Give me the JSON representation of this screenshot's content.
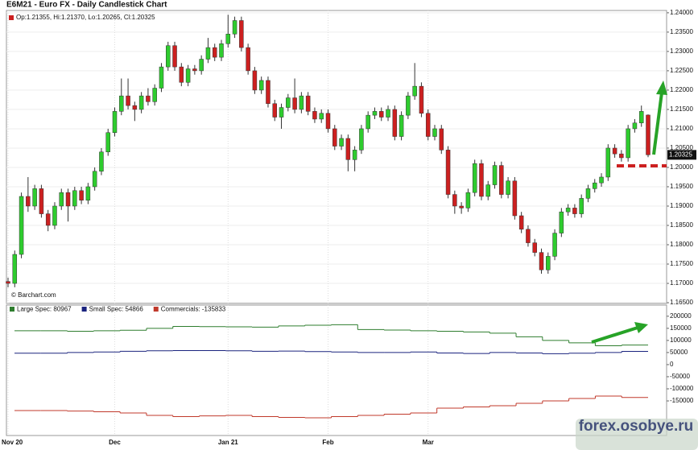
{
  "chart_data": [
    {
      "type": "candlestick",
      "title": "E6M21 - Euro FX - Daily Candlestick Chart",
      "subtitle": "Op:1.21355, Hi:1.21370, Lo:1.20265, Cl:1.20325",
      "source": "© Barchart.com",
      "categories": [
        "Nov 20",
        null,
        null,
        null,
        null,
        null,
        null,
        null,
        null,
        null,
        null,
        null,
        null,
        null,
        null,
        null,
        "Dec",
        null,
        null,
        null,
        null,
        null,
        null,
        null,
        null,
        null,
        null,
        null,
        null,
        null,
        null,
        null,
        null,
        "Jan 21",
        null,
        null,
        null,
        null,
        null,
        null,
        null,
        null,
        null,
        null,
        null,
        null,
        null,
        null,
        "Feb",
        null,
        null,
        null,
        null,
        null,
        null,
        null,
        null,
        null,
        null,
        null,
        null,
        null,
        null,
        "Mar",
        null,
        null,
        null,
        null,
        null,
        null,
        null,
        null,
        null,
        null,
        null,
        null,
        null,
        null,
        null,
        null,
        null,
        null,
        null,
        null,
        null,
        null,
        null,
        null,
        null,
        null,
        null,
        null,
        null,
        null,
        null,
        null,
        null
      ],
      "open": [
        1.1705,
        1.17,
        1.1775,
        1.1925,
        1.19,
        1.1945,
        1.188,
        1.185,
        1.19,
        1.1935,
        1.19,
        1.194,
        1.1915,
        1.195,
        1.199,
        1.204,
        1.209,
        1.2145,
        1.2185,
        1.216,
        1.215,
        1.2185,
        1.217,
        1.2205,
        1.226,
        1.2315,
        1.226,
        1.222,
        1.2255,
        1.225,
        1.228,
        1.231,
        1.2285,
        1.232,
        1.2345,
        1.238,
        1.231,
        1.225,
        1.22,
        1.2225,
        1.2165,
        1.213,
        1.2155,
        1.218,
        1.215,
        1.2185,
        1.2145,
        1.2125,
        1.214,
        1.21,
        1.2055,
        1.2075,
        1.202,
        1.2045,
        1.21,
        1.2135,
        1.2145,
        1.213,
        1.215,
        1.208,
        1.2135,
        1.2185,
        1.221,
        1.214,
        1.208,
        1.21,
        1.2045,
        1.193,
        1.19,
        1.1895,
        1.1935,
        1.201,
        1.1925,
        1.1955,
        1.2005,
        1.193,
        1.1965,
        1.1875,
        1.184,
        1.1805,
        1.178,
        1.1735,
        1.177,
        1.183,
        1.1885,
        1.1895,
        1.188,
        1.192,
        1.1945,
        1.196,
        1.1975,
        1.205,
        1.2035,
        1.2025,
        1.21,
        1.2115,
        1.21355
      ],
      "high": [
        1.1715,
        1.1785,
        1.1935,
        1.1975,
        1.1955,
        1.1955,
        1.189,
        1.191,
        1.1945,
        1.1945,
        1.195,
        1.195,
        1.196,
        1.2,
        1.205,
        1.21,
        1.2155,
        1.223,
        1.223,
        1.217,
        1.2195,
        1.2205,
        1.2215,
        1.227,
        1.2325,
        1.2325,
        1.227,
        1.2265,
        1.2265,
        1.229,
        1.2335,
        1.232,
        1.233,
        1.2395,
        1.239,
        1.239,
        1.232,
        1.226,
        1.2235,
        1.2235,
        1.2175,
        1.2165,
        1.219,
        1.223,
        1.2195,
        1.2195,
        1.2155,
        1.215,
        1.215,
        1.211,
        1.2085,
        1.2085,
        1.2055,
        1.211,
        1.2145,
        1.2155,
        1.2155,
        1.216,
        1.216,
        1.2145,
        1.2195,
        1.227,
        1.222,
        1.215,
        1.211,
        1.211,
        1.2055,
        1.194,
        1.191,
        1.1945,
        1.202,
        1.202,
        1.1965,
        1.2015,
        1.2015,
        1.1975,
        1.1975,
        1.1885,
        1.185,
        1.1815,
        1.179,
        1.178,
        1.184,
        1.1895,
        1.1905,
        1.1905,
        1.193,
        1.1955,
        1.197,
        1.1985,
        1.206,
        1.206,
        1.2045,
        1.211,
        1.2125,
        1.216,
        1.2137
      ],
      "low": [
        1.169,
        1.169,
        1.1765,
        1.1885,
        1.189,
        1.187,
        1.1835,
        1.184,
        1.189,
        1.186,
        1.189,
        1.1905,
        1.1905,
        1.194,
        1.198,
        1.203,
        1.208,
        1.2135,
        1.215,
        1.212,
        1.214,
        1.216,
        1.216,
        1.2195,
        1.225,
        1.225,
        1.221,
        1.221,
        1.224,
        1.224,
        1.227,
        1.2275,
        1.2275,
        1.231,
        1.2335,
        1.23,
        1.224,
        1.219,
        1.219,
        1.2155,
        1.212,
        1.21,
        1.2145,
        1.214,
        1.214,
        1.2135,
        1.2115,
        1.2115,
        1.209,
        1.2045,
        1.2045,
        1.199,
        1.199,
        1.2035,
        1.209,
        1.2125,
        1.212,
        1.212,
        1.207,
        1.207,
        1.2125,
        1.2175,
        1.213,
        1.207,
        1.207,
        1.2035,
        1.192,
        1.188,
        1.188,
        1.1885,
        1.1925,
        1.1915,
        1.1915,
        1.1945,
        1.192,
        1.192,
        1.1865,
        1.183,
        1.1795,
        1.177,
        1.1725,
        1.1725,
        1.176,
        1.182,
        1.1875,
        1.187,
        1.187,
        1.191,
        1.1935,
        1.195,
        1.1965,
        1.2025,
        1.2015,
        1.2015,
        1.209,
        1.2105,
        1.20265
      ],
      "close": [
        1.17,
        1.1775,
        1.1925,
        1.19,
        1.1945,
        1.188,
        1.185,
        1.19,
        1.1935,
        1.19,
        1.194,
        1.1915,
        1.195,
        1.199,
        1.204,
        1.209,
        1.2145,
        1.2185,
        1.216,
        1.215,
        1.2185,
        1.217,
        1.2205,
        1.226,
        1.2315,
        1.226,
        1.222,
        1.2255,
        1.225,
        1.228,
        1.231,
        1.2285,
        1.232,
        1.2345,
        1.238,
        1.231,
        1.225,
        1.22,
        1.2225,
        1.2165,
        1.213,
        1.2155,
        1.218,
        1.215,
        1.2185,
        1.2145,
        1.2125,
        1.214,
        1.21,
        1.2055,
        1.2075,
        1.202,
        1.2045,
        1.21,
        1.2135,
        1.2145,
        1.213,
        1.215,
        1.208,
        1.2135,
        1.2185,
        1.221,
        1.214,
        1.208,
        1.21,
        1.2045,
        1.193,
        1.19,
        1.1895,
        1.1935,
        1.201,
        1.1925,
        1.1955,
        1.2005,
        1.193,
        1.1965,
        1.1875,
        1.184,
        1.1805,
        1.178,
        1.1735,
        1.177,
        1.183,
        1.1885,
        1.1895,
        1.188,
        1.192,
        1.1945,
        1.196,
        1.1975,
        1.205,
        1.2035,
        1.2025,
        1.21,
        1.2115,
        1.2145,
        1.20325
      ],
      "up_color": "#2ecc2e",
      "down_color": "#cc2020",
      "ylim": [
        1.1648,
        1.2406
      ],
      "yticks": [
        {
          "value": 1.165,
          "label": "1.16500"
        },
        {
          "value": 1.17,
          "label": "1.17000"
        },
        {
          "value": 1.175,
          "label": "1.17500"
        },
        {
          "value": 1.18,
          "label": "1.18000"
        },
        {
          "value": 1.185,
          "label": "1.18500"
        },
        {
          "value": 1.19,
          "label": "1.19000"
        },
        {
          "value": 1.195,
          "label": "1.19500"
        },
        {
          "value": 1.2,
          "label": "1.20000"
        },
        {
          "value": 1.205,
          "label": "1.20500"
        },
        {
          "value": 1.21,
          "label": "1.21000"
        },
        {
          "value": 1.215,
          "label": "1.21500"
        },
        {
          "value": 1.22,
          "label": "1.22000"
        },
        {
          "value": 1.225,
          "label": "1.22500"
        },
        {
          "value": 1.23,
          "label": "1.23000"
        },
        {
          "value": 1.235,
          "label": "1.23500"
        },
        {
          "value": 1.24,
          "label": "1.24000"
        }
      ],
      "price_marker": {
        "value": 1.20325,
        "label": "1.20325"
      },
      "grid": true
    },
    {
      "type": "line",
      "series": [
        {
          "name": "Large Spec: 80967",
          "color": "#2e7d2e",
          "values": [
            140000,
            140000,
            138000,
            140000,
            142000,
            150000,
            158000,
            157000,
            156000,
            155000,
            160000,
            163000,
            165000,
            145000,
            143000,
            140000,
            138000,
            135000,
            130000,
            115000,
            100000,
            90000,
            78000,
            80967
          ]
        },
        {
          "name": "Small Spec: 54866",
          "color": "#1a237e",
          "values": [
            47000,
            47000,
            50000,
            52000,
            55000,
            57000,
            58000,
            58000,
            57000,
            55000,
            56000,
            54000,
            52000,
            50000,
            50000,
            52000,
            48000,
            46000,
            50000,
            48000,
            45000,
            47000,
            50000,
            54866
          ]
        },
        {
          "name": "Commercials: -135833",
          "color": "#c0392b",
          "values": [
            -190000,
            -190000,
            -192000,
            -195000,
            -200000,
            -210000,
            -215000,
            -212000,
            -210000,
            -215000,
            -218000,
            -220000,
            -215000,
            -210000,
            -205000,
            -200000,
            -180000,
            -175000,
            -170000,
            -160000,
            -150000,
            -140000,
            -130000,
            -135833
          ]
        }
      ],
      "ylim": [
        -293000,
        246000
      ],
      "yticks": [
        200000,
        150000,
        100000,
        50000,
        0,
        -50000,
        -100000,
        -150000
      ],
      "grid": false
    },
    {
      "type": "watermark",
      "text": "forex.osobye.ru"
    }
  ]
}
